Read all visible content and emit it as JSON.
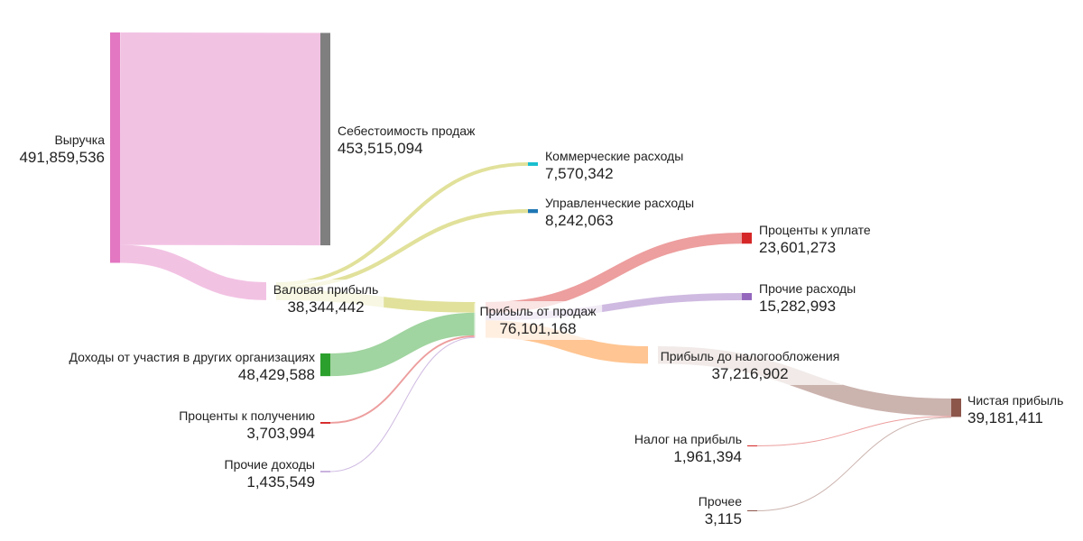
{
  "chart_data": {
    "type": "sankey",
    "value_format": "comma",
    "nodes": [
      {
        "id": "revenue",
        "label": "Выручка",
        "value": 491859536,
        "color": "#e377c2"
      },
      {
        "id": "cost_of_sales",
        "label": "Себестоимость продаж",
        "value": 453515094,
        "color": "#7f7f7f"
      },
      {
        "id": "gross_profit",
        "label": "Валовая прибыль",
        "value": 38344442,
        "color": "#bcbd22"
      },
      {
        "id": "selling_exp",
        "label": "Коммерческие расходы",
        "value": 7570342,
        "color": "#17becf"
      },
      {
        "id": "admin_exp",
        "label": "Управленческие расходы",
        "value": 8242063,
        "color": "#1f77b4"
      },
      {
        "id": "sales_profit",
        "label": "Прибыль от продаж",
        "value": 76101168,
        "color": "#ff7f0e"
      },
      {
        "id": "participation",
        "label": "Доходы от участия в других организациях",
        "value": 48429588,
        "color": "#2ca02c"
      },
      {
        "id": "interest_recv",
        "label": "Проценты к получению",
        "value": 3703994,
        "color": "#d62728"
      },
      {
        "id": "other_income",
        "label": "Прочие доходы",
        "value": 1435549,
        "color": "#9467bd"
      },
      {
        "id": "interest_pay",
        "label": "Проценты к уплате",
        "value": 23601273,
        "color": "#d62728"
      },
      {
        "id": "other_exp",
        "label": "Прочие расходы",
        "value": 15282993,
        "color": "#9467bd"
      },
      {
        "id": "pretax_profit",
        "label": "Прибыль до налогообложения",
        "value": 37216902,
        "color": "#ff7f0e"
      },
      {
        "id": "net_profit",
        "label": "Чистая прибыль",
        "value": 39181411,
        "color": "#8c564b"
      },
      {
        "id": "income_tax",
        "label": "Налог на прибыль",
        "value": 1961394,
        "color": "#d62728"
      },
      {
        "id": "other",
        "label": "Прочее",
        "value": 3115,
        "color": "#8c564b"
      }
    ],
    "links": [
      {
        "source": "revenue",
        "target": "cost_of_sales",
        "value": 453515094,
        "color": "#e377c2"
      },
      {
        "source": "revenue",
        "target": "gross_profit",
        "value": 38344442,
        "color": "#e377c2"
      },
      {
        "source": "gross_profit",
        "target": "selling_exp",
        "value": 7570342,
        "color": "#bcbd22"
      },
      {
        "source": "gross_profit",
        "target": "admin_exp",
        "value": 8242063,
        "color": "#bcbd22"
      },
      {
        "source": "gross_profit",
        "target": "sales_profit",
        "value": 22532037,
        "color": "#bcbd22"
      },
      {
        "source": "participation",
        "target": "sales_profit",
        "value": 48429588,
        "color": "#2ca02c"
      },
      {
        "source": "interest_recv",
        "target": "sales_profit",
        "value": 3703994,
        "color": "#d62728"
      },
      {
        "source": "other_income",
        "target": "sales_profit",
        "value": 1435549,
        "color": "#9467bd"
      },
      {
        "source": "sales_profit",
        "target": "interest_pay",
        "value": 23601273,
        "color": "#d62728"
      },
      {
        "source": "sales_profit",
        "target": "other_exp",
        "value": 15282993,
        "color": "#9467bd"
      },
      {
        "source": "sales_profit",
        "target": "pretax_profit",
        "value": 37216902,
        "color": "#ff7f0e"
      },
      {
        "source": "pretax_profit",
        "target": "net_profit",
        "value": 37216902,
        "color": "#8c564b"
      },
      {
        "source": "income_tax",
        "target": "net_profit",
        "value": 1961394,
        "color": "#d62728"
      },
      {
        "source": "other",
        "target": "net_profit",
        "value": 3115,
        "color": "#8c564b"
      }
    ]
  }
}
